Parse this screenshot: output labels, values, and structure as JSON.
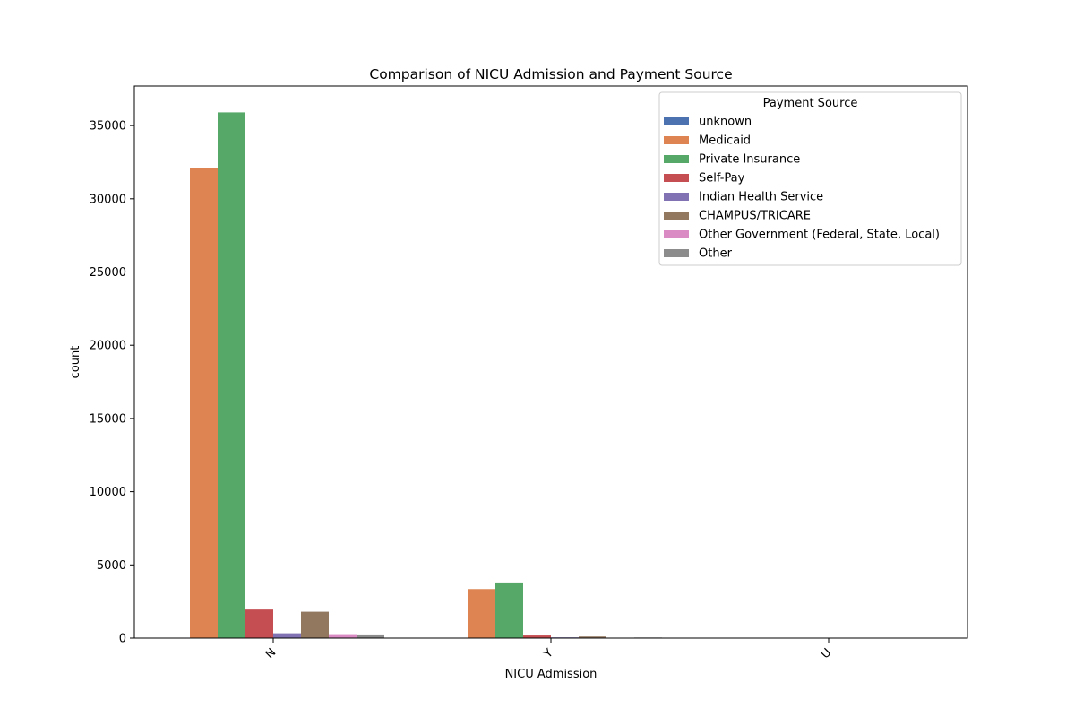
{
  "chart_data": {
    "type": "bar",
    "title": "Comparison of NICU Admission and Payment Source",
    "xlabel": "NICU Admission",
    "ylabel": "count",
    "categories": [
      "N",
      "Y",
      "U"
    ],
    "ylim": [
      0,
      37700
    ],
    "yticks": [
      0,
      5000,
      10000,
      15000,
      20000,
      25000,
      30000,
      35000
    ],
    "grid": false,
    "legend": {
      "title": "Payment Source",
      "placement": "top-right"
    },
    "series": [
      {
        "name": "unknown",
        "color": "#4c72b0",
        "values": [
          0,
          0,
          0
        ]
      },
      {
        "name": "Medicaid",
        "color": "#dd8452",
        "values": [
          32100,
          3350,
          0
        ]
      },
      {
        "name": "Private Insurance",
        "color": "#55a868",
        "values": [
          35900,
          3800,
          0
        ]
      },
      {
        "name": "Self-Pay",
        "color": "#c44e52",
        "values": [
          1950,
          180,
          0
        ]
      },
      {
        "name": "Indian Health Service",
        "color": "#8172b3",
        "values": [
          330,
          50,
          0
        ]
      },
      {
        "name": "CHAMPUS/TRICARE",
        "color": "#937860",
        "values": [
          1800,
          110,
          0
        ]
      },
      {
        "name": "Other Government (Federal, State, Local)",
        "color": "#da8bc3",
        "values": [
          270,
          30,
          0
        ]
      },
      {
        "name": "Other",
        "color": "#8c8c8c",
        "values": [
          250,
          40,
          0
        ]
      }
    ]
  }
}
